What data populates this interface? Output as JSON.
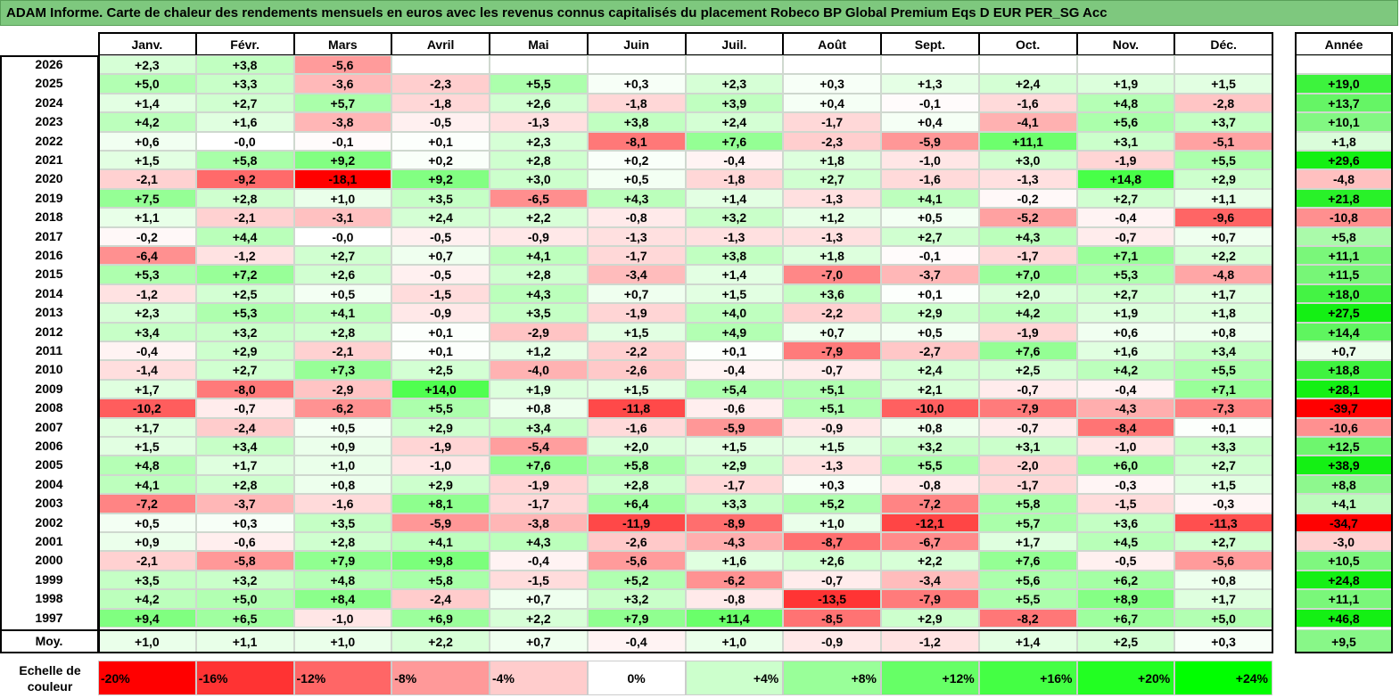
{
  "title": "ADAM Informe. Carte de chaleur des rendements mensuels en euros avec les revenus connus capitalisés du placement Robeco BP Global Premium Eqs D EUR PER_SG Acc",
  "chart_data": {
    "type": "heatmap",
    "title": "ADAM Informe. Carte de chaleur des rendements mensuels en euros avec les revenus connus capitalisés du placement Robeco BP Global Premium Eqs D EUR PER_SG Acc",
    "columns": [
      "Janv.",
      "Févr.",
      "Mars",
      "Avril",
      "Mai",
      "Juin",
      "Juil.",
      "Août",
      "Sept.",
      "Oct.",
      "Nov.",
      "Déc."
    ],
    "year_column": "Année",
    "rows": [
      {
        "label": "2026",
        "values": [
          "+2,3",
          "+3,8",
          "-5,6",
          "",
          "",
          "",
          "",
          "",
          "",
          "",
          "",
          ""
        ],
        "year": ""
      },
      {
        "label": "2025",
        "values": [
          "+5,0",
          "+3,3",
          "-3,6",
          "-2,3",
          "+5,5",
          "+0,3",
          "+2,3",
          "+0,3",
          "+1,3",
          "+2,4",
          "+1,9",
          "+1,5"
        ],
        "year": "+19,0"
      },
      {
        "label": "2024",
        "values": [
          "+1,4",
          "+2,7",
          "+5,7",
          "-1,8",
          "+2,6",
          "-1,8",
          "+3,9",
          "+0,4",
          "-0,1",
          "-1,6",
          "+4,8",
          "-2,8"
        ],
        "year": "+13,7"
      },
      {
        "label": "2023",
        "values": [
          "+4,2",
          "+1,6",
          "-3,8",
          "-0,5",
          "-1,3",
          "+3,8",
          "+2,4",
          "-1,7",
          "+0,4",
          "-4,1",
          "+5,6",
          "+3,7"
        ],
        "year": "+10,1"
      },
      {
        "label": "2022",
        "values": [
          "+0,6",
          "-0,0",
          "-0,1",
          "+0,1",
          "+2,3",
          "-8,1",
          "+7,6",
          "-2,3",
          "-5,9",
          "+11,1",
          "+3,1",
          "-5,1"
        ],
        "year": "+1,8"
      },
      {
        "label": "2021",
        "values": [
          "+1,5",
          "+5,8",
          "+9,2",
          "+0,2",
          "+2,8",
          "+0,2",
          "-0,4",
          "+1,8",
          "-1,0",
          "+3,0",
          "-1,9",
          "+5,5"
        ],
        "year": "+29,6"
      },
      {
        "label": "2020",
        "values": [
          "-2,1",
          "-9,2",
          "-18,1",
          "+9,2",
          "+3,0",
          "+0,5",
          "-1,8",
          "+2,7",
          "-1,6",
          "-1,3",
          "+14,8",
          "+2,9"
        ],
        "year": "-4,8"
      },
      {
        "label": "2019",
        "values": [
          "+7,5",
          "+2,8",
          "+1,0",
          "+3,5",
          "-6,5",
          "+4,3",
          "+1,4",
          "-1,3",
          "+4,1",
          "-0,2",
          "+2,7",
          "+1,1"
        ],
        "year": "+21,8"
      },
      {
        "label": "2018",
        "values": [
          "+1,1",
          "-2,1",
          "-3,1",
          "+2,4",
          "+2,2",
          "-0,8",
          "+3,2",
          "+1,2",
          "+0,5",
          "-5,2",
          "-0,4",
          "-9,6"
        ],
        "year": "-10,8"
      },
      {
        "label": "2017",
        "values": [
          "-0,2",
          "+4,4",
          "-0,0",
          "-0,5",
          "-0,9",
          "-1,3",
          "-1,3",
          "-1,3",
          "+2,7",
          "+4,3",
          "-0,7",
          "+0,7"
        ],
        "year": "+5,8"
      },
      {
        "label": "2016",
        "values": [
          "-6,4",
          "-1,2",
          "+2,7",
          "+0,7",
          "+4,1",
          "-1,7",
          "+3,8",
          "+1,8",
          "-0,1",
          "-1,7",
          "+7,1",
          "+2,2"
        ],
        "year": "+11,1"
      },
      {
        "label": "2015",
        "values": [
          "+5,3",
          "+7,2",
          "+2,6",
          "-0,5",
          "+2,8",
          "-3,4",
          "+1,4",
          "-7,0",
          "-3,7",
          "+7,0",
          "+5,3",
          "-4,8"
        ],
        "year": "+11,5"
      },
      {
        "label": "2014",
        "values": [
          "-1,2",
          "+2,5",
          "+0,5",
          "-1,5",
          "+4,3",
          "+0,7",
          "+1,5",
          "+3,6",
          "+0,1",
          "+2,0",
          "+2,7",
          "+1,7"
        ],
        "year": "+18,0"
      },
      {
        "label": "2013",
        "values": [
          "+2,3",
          "+5,3",
          "+4,1",
          "-0,9",
          "+3,5",
          "-1,9",
          "+4,0",
          "-2,2",
          "+2,9",
          "+4,2",
          "+1,9",
          "+1,8"
        ],
        "year": "+27,5"
      },
      {
        "label": "2012",
        "values": [
          "+3,4",
          "+3,2",
          "+2,8",
          "+0,1",
          "-2,9",
          "+1,5",
          "+4,9",
          "+0,7",
          "+0,5",
          "-1,9",
          "+0,6",
          "+0,8"
        ],
        "year": "+14,4"
      },
      {
        "label": "2011",
        "values": [
          "-0,4",
          "+2,9",
          "-2,1",
          "+0,1",
          "+1,2",
          "-2,2",
          "+0,1",
          "-7,9",
          "-2,7",
          "+7,6",
          "+1,6",
          "+3,4"
        ],
        "year": "+0,7"
      },
      {
        "label": "2010",
        "values": [
          "-1,4",
          "+2,7",
          "+7,3",
          "+2,5",
          "-4,0",
          "-2,6",
          "-0,4",
          "-0,7",
          "+2,4",
          "+2,5",
          "+4,2",
          "+5,5"
        ],
        "year": "+18,8"
      },
      {
        "label": "2009",
        "values": [
          "+1,7",
          "-8,0",
          "-2,9",
          "+14,0",
          "+1,9",
          "+1,5",
          "+5,4",
          "+5,1",
          "+2,1",
          "-0,7",
          "-0,4",
          "+7,1"
        ],
        "year": "+28,1"
      },
      {
        "label": "2008",
        "values": [
          "-10,2",
          "-0,7",
          "-6,2",
          "+5,5",
          "+0,8",
          "-11,8",
          "-0,6",
          "+5,1",
          "-10,0",
          "-7,9",
          "-4,3",
          "-7,3"
        ],
        "year": "-39,7"
      },
      {
        "label": "2007",
        "values": [
          "+1,7",
          "-2,4",
          "+0,5",
          "+2,9",
          "+3,4",
          "-1,6",
          "-5,9",
          "-0,9",
          "+0,8",
          "-0,7",
          "-8,4",
          "+0,1"
        ],
        "year": "-10,6"
      },
      {
        "label": "2006",
        "values": [
          "+1,5",
          "+3,4",
          "+0,9",
          "-1,9",
          "-5,4",
          "+2,0",
          "+1,5",
          "+1,5",
          "+3,2",
          "+3,1",
          "-1,0",
          "+3,3"
        ],
        "year": "+12,5"
      },
      {
        "label": "2005",
        "values": [
          "+4,8",
          "+1,7",
          "+1,0",
          "-1,0",
          "+7,6",
          "+5,8",
          "+2,9",
          "-1,3",
          "+5,5",
          "-2,0",
          "+6,0",
          "+2,7"
        ],
        "year": "+38,9"
      },
      {
        "label": "2004",
        "values": [
          "+4,1",
          "+2,8",
          "+0,8",
          "+2,9",
          "-1,9",
          "+2,8",
          "-1,7",
          "+0,3",
          "-0,8",
          "-1,7",
          "-0,3",
          "+1,5"
        ],
        "year": "+8,8"
      },
      {
        "label": "2003",
        "values": [
          "-7,2",
          "-3,7",
          "-1,6",
          "+8,1",
          "-1,7",
          "+6,4",
          "+3,3",
          "+5,2",
          "-7,2",
          "+5,8",
          "-1,5",
          "-0,3"
        ],
        "year": "+4,1"
      },
      {
        "label": "2002",
        "values": [
          "+0,5",
          "+0,3",
          "+3,5",
          "-5,9",
          "-3,8",
          "-11,9",
          "-8,9",
          "+1,0",
          "-12,1",
          "+5,7",
          "+3,6",
          "-11,3"
        ],
        "year": "-34,7"
      },
      {
        "label": "2001",
        "values": [
          "+0,9",
          "-0,6",
          "+2,8",
          "+4,1",
          "+4,3",
          "-2,6",
          "-4,3",
          "-8,7",
          "-6,7",
          "+1,7",
          "+4,5",
          "+2,7"
        ],
        "year": "-3,0"
      },
      {
        "label": "2000",
        "values": [
          "-2,1",
          "-5,8",
          "+7,9",
          "+9,8",
          "-0,4",
          "-5,6",
          "+1,6",
          "+2,6",
          "+2,2",
          "+7,6",
          "-0,5",
          "-5,6"
        ],
        "year": "+10,5"
      },
      {
        "label": "1999",
        "values": [
          "+3,5",
          "+3,2",
          "+4,8",
          "+5,8",
          "-1,5",
          "+5,2",
          "-6,2",
          "-0,7",
          "-3,4",
          "+5,6",
          "+6,2",
          "+0,8"
        ],
        "year": "+24,8"
      },
      {
        "label": "1998",
        "values": [
          "+4,2",
          "+5,0",
          "+8,4",
          "-2,4",
          "+0,7",
          "+3,2",
          "-0,8",
          "-13,5",
          "-7,9",
          "+5,5",
          "+8,9",
          "+1,7"
        ],
        "year": "+11,1"
      },
      {
        "label": "1997",
        "values": [
          "+9,4",
          "+6,5",
          "-1,0",
          "+6,9",
          "+2,2",
          "+7,9",
          "+11,4",
          "-8,5",
          "+2,9",
          "-8,2",
          "+6,7",
          "+5,0"
        ],
        "year": "+46,8"
      }
    ],
    "average": {
      "label": "Moy.",
      "values": [
        "+1,0",
        "+1,1",
        "+1,0",
        "+2,2",
        "+0,7",
        "-0,4",
        "+1,0",
        "-0,9",
        "-1,2",
        "+1,4",
        "+2,5",
        "+0,3"
      ],
      "year": "+9,5"
    },
    "legend": {
      "label": "Echelle de couleur",
      "items": [
        {
          "text": "-20%",
          "color": "#ff0000"
        },
        {
          "text": "-16%",
          "color": "#ff3333"
        },
        {
          "text": "-12%",
          "color": "#ff6666"
        },
        {
          "text": "-8%",
          "color": "#ff9999"
        },
        {
          "text": "-4%",
          "color": "#ffcccc"
        },
        {
          "text": "0%",
          "color": "#ffffff"
        },
        {
          "text": "+4%",
          "color": "#ccffcc"
        },
        {
          "text": "+8%",
          "color": "#99ff99"
        },
        {
          "text": "+12%",
          "color": "#66ff66"
        },
        {
          "text": "+16%",
          "color": "#44ff44"
        },
        {
          "text": "+20%",
          "color": "#22ff22"
        },
        {
          "text": "+24%",
          "color": "#00ff00"
        }
      ]
    }
  }
}
